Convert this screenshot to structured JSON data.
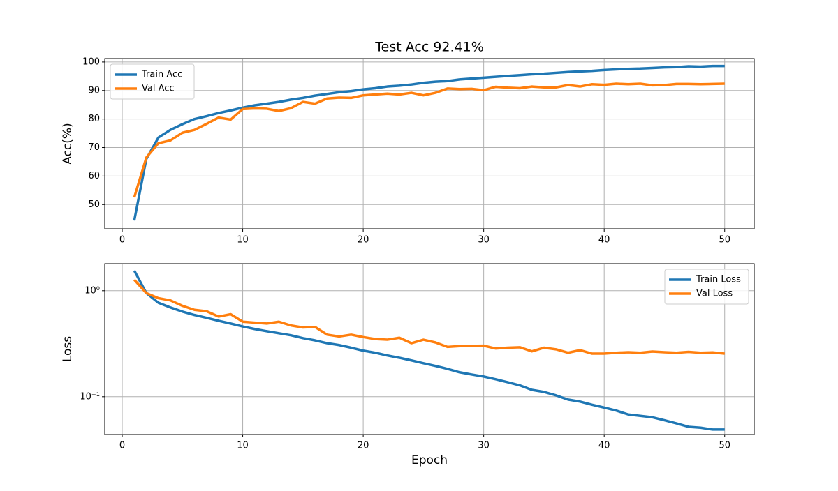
{
  "chart_data": [
    {
      "type": "line",
      "title": "Test Acc 92.41%",
      "ylabel": "Acc(%)",
      "x": [
        1,
        2,
        3,
        4,
        5,
        6,
        7,
        8,
        9,
        10,
        11,
        12,
        13,
        14,
        15,
        16,
        17,
        18,
        19,
        20,
        21,
        22,
        23,
        24,
        25,
        26,
        27,
        28,
        29,
        30,
        31,
        32,
        33,
        34,
        35,
        36,
        37,
        38,
        39,
        40,
        41,
        42,
        43,
        44,
        45,
        46,
        47,
        48,
        49,
        50
      ],
      "series": [
        {
          "name": "Train Acc",
          "color": "#1f77b4",
          "values": [
            44.4,
            66,
            73.5,
            76.2,
            78.2,
            80,
            81,
            82.1,
            83,
            84,
            84.8,
            85.4,
            86,
            86.8,
            87.4,
            88.2,
            88.8,
            89.4,
            89.8,
            90.4,
            90.8,
            91.4,
            91.7,
            92.1,
            92.7,
            93.1,
            93.3,
            93.9,
            94.2,
            94.5,
            94.8,
            95.1,
            95.4,
            95.7,
            95.9,
            96.2,
            96.5,
            96.7,
            96.9,
            97.2,
            97.4,
            97.6,
            97.7,
            97.9,
            98.1,
            98.2,
            98.5,
            98.4,
            98.6,
            98.6
          ]
        },
        {
          "name": "Val Acc",
          "color": "#ff7f0e",
          "values": [
            52.5,
            66.5,
            71.5,
            72.5,
            75.2,
            76.2,
            78.3,
            80.5,
            79.8,
            83.5,
            83.7,
            83.6,
            82.8,
            83.8,
            86,
            85.4,
            87.2,
            87.5,
            87.4,
            88.3,
            88.6,
            88.9,
            88.6,
            89.2,
            88.3,
            89.2,
            90.7,
            90.5,
            90.6,
            90.1,
            91.3,
            91,
            90.8,
            91.4,
            91.1,
            91.1,
            91.9,
            91.4,
            92.2,
            92,
            92.4,
            92.2,
            92.4,
            91.8,
            91.9,
            92.3,
            92.3,
            92.2,
            92.3,
            92.4
          ]
        }
      ],
      "xlim": [
        -1.45,
        52.45
      ],
      "xticks": [
        0,
        10,
        20,
        30,
        40,
        50
      ],
      "ylim": [
        41.5,
        101.2
      ],
      "yticks": [
        50,
        60,
        70,
        80,
        90,
        100
      ],
      "grid": true,
      "legend": "upper left"
    },
    {
      "type": "line",
      "ylabel": "Loss",
      "xlabel": "Epoch",
      "x": [
        1,
        2,
        3,
        4,
        5,
        6,
        7,
        8,
        9,
        10,
        11,
        12,
        13,
        14,
        15,
        16,
        17,
        18,
        19,
        20,
        21,
        22,
        23,
        24,
        25,
        26,
        27,
        28,
        29,
        30,
        31,
        32,
        33,
        34,
        35,
        36,
        37,
        38,
        39,
        40,
        41,
        42,
        43,
        44,
        45,
        46,
        47,
        48,
        49,
        50
      ],
      "series": [
        {
          "name": "Train Loss",
          "color": "#1f77b4",
          "values": [
            1.55,
            0.95,
            0.77,
            0.695,
            0.635,
            0.59,
            0.555,
            0.52,
            0.49,
            0.46,
            0.435,
            0.415,
            0.397,
            0.38,
            0.357,
            0.34,
            0.32,
            0.307,
            0.29,
            0.272,
            0.26,
            0.245,
            0.233,
            0.22,
            0.207,
            0.195,
            0.183,
            0.17,
            0.162,
            0.155,
            0.146,
            0.137,
            0.128,
            0.116,
            0.111,
            0.103,
            0.094,
            0.09,
            0.084,
            0.079,
            0.074,
            0.068,
            0.066,
            0.064,
            0.06,
            0.056,
            0.052,
            0.051,
            0.049,
            0.049
          ]
        },
        {
          "name": "Val Loss",
          "color": "#ff7f0e",
          "values": [
            1.27,
            0.95,
            0.85,
            0.81,
            0.72,
            0.66,
            0.64,
            0.57,
            0.6,
            0.51,
            0.5,
            0.49,
            0.51,
            0.47,
            0.45,
            0.455,
            0.385,
            0.37,
            0.385,
            0.365,
            0.35,
            0.345,
            0.36,
            0.32,
            0.345,
            0.325,
            0.295,
            0.3,
            0.302,
            0.303,
            0.285,
            0.29,
            0.293,
            0.268,
            0.29,
            0.28,
            0.26,
            0.275,
            0.255,
            0.255,
            0.26,
            0.263,
            0.26,
            0.267,
            0.263,
            0.26,
            0.265,
            0.26,
            0.262,
            0.255
          ]
        }
      ],
      "xlim": [
        -1.45,
        52.45
      ],
      "xticks": [
        0,
        10,
        20,
        30,
        40,
        50
      ],
      "ylim": [
        0.044,
        1.8
      ],
      "yscale": "log",
      "yticks": [
        {
          "value": 0.1,
          "label": "10⁻¹"
        },
        {
          "value": 1,
          "label": "10⁰"
        }
      ],
      "grid": true,
      "legend": "upper right"
    }
  ]
}
